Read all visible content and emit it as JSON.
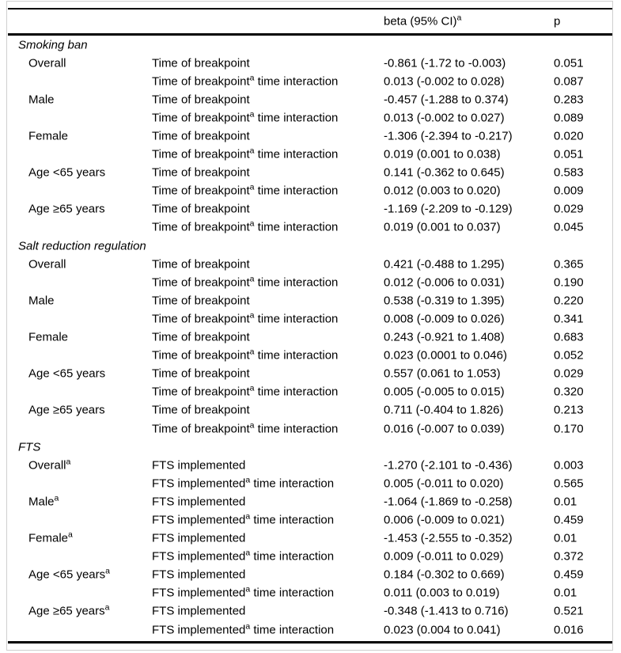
{
  "page": {
    "background": "#ffffff",
    "text_color": "#000000",
    "rule_color": "#000000",
    "frame_color": "#cfcfcf"
  },
  "table": {
    "header": {
      "beta": "beta (95% CI)^{a}",
      "p": "p"
    },
    "sections": [
      {
        "title": "Smoking ban",
        "groups": [
          {
            "name": "Overall",
            "rows": [
              {
                "variable": "Time of breakpoint",
                "beta": "-0.861 (-1.72 to -0.003)",
                "p": "0.051"
              },
              {
                "variable": "Time of breakpoint^{a} time interaction",
                "beta": "0.013 (-0.002 to 0.028)",
                "p": "0.087"
              }
            ]
          },
          {
            "name": "Male",
            "rows": [
              {
                "variable": "Time of breakpoint",
                "beta": "-0.457 (-1.288 to 0.374)",
                "p": "0.283"
              },
              {
                "variable": "Time of breakpoint^{a} time interaction",
                "beta": "0.013 (-0.002 to 0.027)",
                "p": "0.089"
              }
            ]
          },
          {
            "name": "Female",
            "rows": [
              {
                "variable": "Time of breakpoint",
                "beta": "-1.306 (-2.394 to -0.217)",
                "p": "0.020"
              },
              {
                "variable": "Time of breakpoint^{a} time interaction",
                "beta": "0.019 (0.001 to 0.038)",
                "p": "0.051"
              }
            ]
          },
          {
            "name": "Age <65 years",
            "rows": [
              {
                "variable": "Time of breakpoint",
                "beta": "0.141 (-0.362 to 0.645)",
                "p": "0.583"
              },
              {
                "variable": "Time of breakpoint^{a} time interaction",
                "beta": "0.012 (0.003 to 0.020)",
                "p": "0.009"
              }
            ]
          },
          {
            "name": "Age ≥65 years",
            "rows": [
              {
                "variable": "Time of breakpoint",
                "beta": "-1.169 (-2.209 to -0.129)",
                "p": "0.029"
              },
              {
                "variable": "Time of breakpoint^{a} time interaction",
                "beta": "0.019 (0.001 to 0.037)",
                "p": "0.045"
              }
            ]
          }
        ]
      },
      {
        "title": "Salt reduction regulation",
        "groups": [
          {
            "name": "Overall",
            "rows": [
              {
                "variable": "Time of breakpoint",
                "beta": "0.421 (-0.488 to 1.295)",
                "p": "0.365"
              },
              {
                "variable": "Time of breakpoint^{a} time interaction",
                "beta": "0.012 (-0.006 to 0.031)",
                "p": "0.190"
              }
            ]
          },
          {
            "name": "Male",
            "rows": [
              {
                "variable": "Time of breakpoint",
                "beta": "0.538 (-0.319 to 1.395)",
                "p": "0.220"
              },
              {
                "variable": "Time of breakpoint^{a} time interaction",
                "beta": "0.008 (-0.009 to 0.026)",
                "p": "0.341"
              }
            ]
          },
          {
            "name": "Female",
            "rows": [
              {
                "variable": "Time of breakpoint",
                "beta": "0.243 (-0.921 to 1.408)",
                "p": "0.683"
              },
              {
                "variable": "Time of breakpoint^{a} time interaction",
                "beta": "0.023 (0.0001 to 0.046)",
                "p": "0.052"
              }
            ]
          },
          {
            "name": "Age <65 years",
            "rows": [
              {
                "variable": "Time of breakpoint",
                "beta": "0.557 (0.061 to 1.053)",
                "p": "0.029"
              },
              {
                "variable": "Time of breakpoint^{a} time interaction",
                "beta": "0.005 (-0.005 to 0.015)",
                "p": "0.320"
              }
            ]
          },
          {
            "name": "Age ≥65 years",
            "rows": [
              {
                "variable": "Time of breakpoint",
                "beta": "0.711 (-0.404 to 1.826)",
                "p": "0.213"
              },
              {
                "variable": "Time of breakpoint^{a} time interaction",
                "beta": "0.016 (-0.007 to 0.039)",
                "p": "0.170"
              }
            ]
          }
        ]
      },
      {
        "title": "FTS",
        "groups": [
          {
            "name": "Overall^{a}",
            "rows": [
              {
                "variable": "FTS implemented",
                "beta": "-1.270 (-2.101 to -0.436)",
                "p": "0.003"
              },
              {
                "variable": "FTS implemented^{a} time interaction",
                "beta": "0.005 (-0.011 to 0.020)",
                "p": "0.565"
              }
            ]
          },
          {
            "name": "Male^{a}",
            "rows": [
              {
                "variable": "FTS implemented",
                "beta": "-1.064 (-1.869 to -0.258)",
                "p": "0.01"
              },
              {
                "variable": "FTS implemented^{a} time interaction",
                "beta": "0.006 (-0.009 to 0.021)",
                "p": "0.459"
              }
            ]
          },
          {
            "name": "Female^{a}",
            "rows": [
              {
                "variable": "FTS implemented",
                "beta": "-1.453 (-2.555 to -0.352)",
                "p": "0.01"
              },
              {
                "variable": "FTS implemented^{a} time interaction",
                "beta": "0.009 (-0.011 to 0.029)",
                "p": "0.372"
              }
            ]
          },
          {
            "name": "Age <65 years^{a}",
            "rows": [
              {
                "variable": "FTS implemented",
                "beta": "0.184 (-0.302 to 0.669)",
                "p": "0.459"
              },
              {
                "variable": "FTS implemented^{a} time interaction",
                "beta": "0.011 (0.003 to 0.019)",
                "p": "0.01"
              }
            ]
          },
          {
            "name": "Age ≥65 years^{a}",
            "rows": [
              {
                "variable": "FTS implemented",
                "beta": "-0.348 (-1.413 to 0.716)",
                "p": "0.521"
              },
              {
                "variable": "FTS implemented^{a} time interaction",
                "beta": "0.023 (0.004 to 0.041)",
                "p": "0.016"
              }
            ]
          }
        ]
      }
    ]
  }
}
